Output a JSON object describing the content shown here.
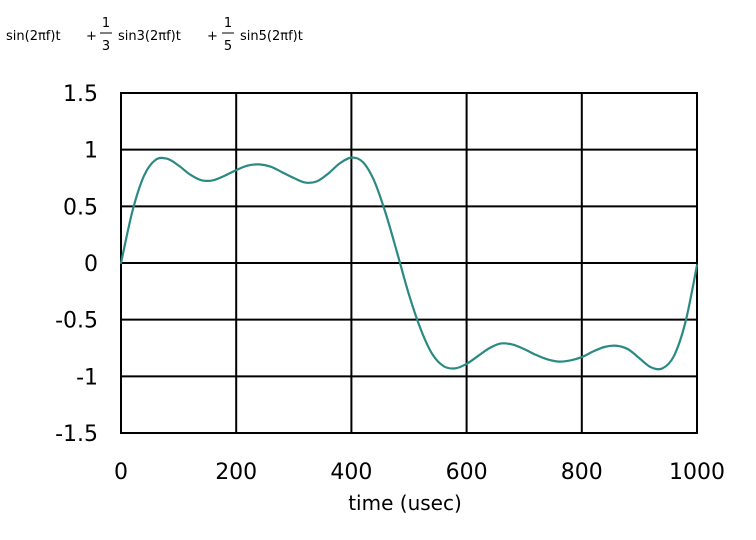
{
  "formula": {
    "term1": "sin(2πf)t",
    "plus1": "+",
    "frac1_num": "1",
    "frac1_den": "3",
    "term2": "sin3(2πf)t",
    "plus2": "+",
    "frac2_num": "1",
    "frac2_den": "5",
    "term3": "sin5(2πf)t"
  },
  "chart_data": {
    "type": "line",
    "title": "",
    "xlabel": "time (usec)",
    "ylabel": "",
    "xlim": [
      0,
      1000
    ],
    "ylim": [
      -1.5,
      1.5
    ],
    "x_ticks": [
      0,
      200,
      400,
      600,
      800,
      1000
    ],
    "x_tick_labels": [
      "0",
      "200",
      "400",
      "600",
      "800",
      "1000"
    ],
    "y_ticks": [
      1.5,
      1,
      0.5,
      0,
      -0.5,
      -1,
      -1.5
    ],
    "y_tick_labels": [
      "1.5",
      "1",
      "0.5",
      "0",
      "-0.5",
      "-1",
      "-1.5"
    ],
    "grid": true,
    "line_color": "#2a8a82",
    "series": [
      {
        "x": [
          0,
          20,
          40,
          60,
          80,
          100,
          120,
          140,
          160,
          180,
          200,
          220,
          240,
          260,
          280,
          300,
          320,
          340,
          360,
          380,
          400,
          420,
          440,
          460,
          480,
          500,
          520,
          540,
          560,
          580,
          600,
          620,
          640,
          660,
          680,
          700,
          720,
          740,
          760,
          780,
          800,
          820,
          840,
          860,
          880,
          900,
          920,
          940,
          960,
          980,
          1000
        ],
        "y": [
          0,
          0.46,
          0.77,
          0.91,
          0.92,
          0.86,
          0.78,
          0.73,
          0.73,
          0.77,
          0.82,
          0.86,
          0.87,
          0.85,
          0.8,
          0.75,
          0.71,
          0.72,
          0.79,
          0.88,
          0.93,
          0.89,
          0.72,
          0.43,
          0.08,
          -0.28,
          -0.58,
          -0.8,
          -0.91,
          -0.93,
          -0.89,
          -0.82,
          -0.75,
          -0.71,
          -0.72,
          -0.76,
          -0.81,
          -0.85,
          -0.87,
          -0.86,
          -0.83,
          -0.78,
          -0.74,
          -0.73,
          -0.76,
          -0.84,
          -0.92,
          -0.93,
          -0.82,
          -0.52,
          -0.02
        ]
      }
    ]
  }
}
